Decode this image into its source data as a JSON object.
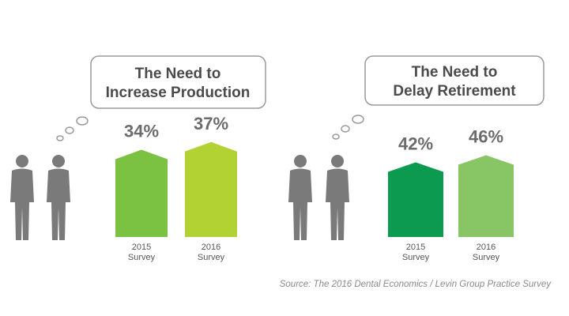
{
  "chart_data": [
    {
      "type": "bar",
      "title": "The Need to Increase Production",
      "title_lines": [
        "The Need to",
        "Increase Production"
      ],
      "categories": [
        "2015 Survey",
        "2016 Survey"
      ],
      "category_lines": [
        [
          "2015",
          "Survey"
        ],
        [
          "2016",
          "Survey"
        ]
      ],
      "values": [
        34,
        37
      ],
      "value_labels": [
        "34%",
        "37%"
      ],
      "colors": [
        "#7cc242",
        "#b2d234"
      ],
      "ylim": [
        0,
        40
      ]
    },
    {
      "type": "bar",
      "title": "The Need to Delay Retirement",
      "title_lines": [
        "The Need to",
        "Delay Retirement"
      ],
      "categories": [
        "2015 Survey",
        "2016 Survey"
      ],
      "category_lines": [
        [
          "2015",
          "Survey"
        ],
        [
          "2016",
          "Survey"
        ]
      ],
      "values": [
        42,
        46
      ],
      "value_labels": [
        "42%",
        "46%"
      ],
      "colors": [
        "#0c9a50",
        "#88c565"
      ],
      "ylim": [
        0,
        50
      ]
    }
  ],
  "source": "Source: The 2016 Dental Economics / Levin Group Practice Survey",
  "icons": [
    "person-icon",
    "thought-bubble-icon"
  ]
}
